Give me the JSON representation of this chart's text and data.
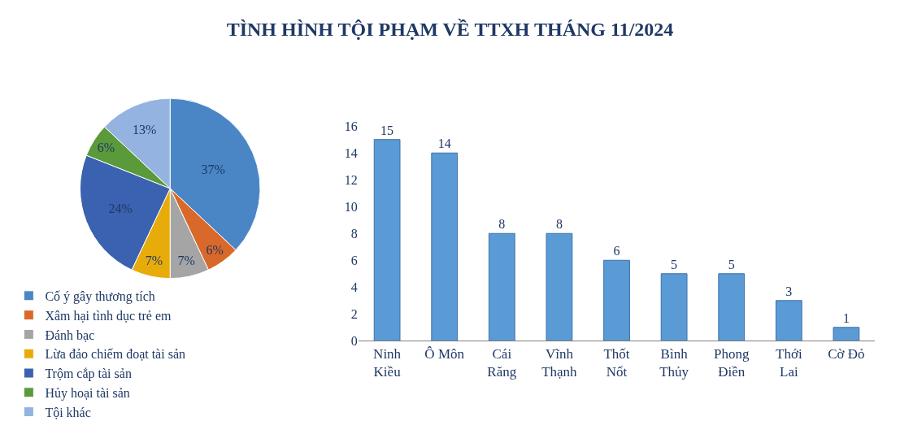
{
  "chart_data": [
    {
      "type": "pie",
      "title": "TÌNH HÌNH TỘI PHẠM VỀ TTXH THÁNG 11/2024",
      "categories": [
        "Cố ý gây thương tích",
        "Xâm hại tình dục trẻ em",
        "Đánh bạc",
        "Lừa đảo chiếm đoạt tài sản",
        "Trộm cắp tài sản",
        "Hủy hoại tài sản",
        "Tội khác"
      ],
      "values": [
        37,
        6,
        7,
        7,
        24,
        6,
        13
      ],
      "value_labels": [
        "37%",
        "6%",
        "7%",
        "7%",
        "24%",
        "6%",
        "13%"
      ],
      "colors": [
        "#4a86c5",
        "#d9692a",
        "#a5a5a5",
        "#e8ac0a",
        "#3a62b0",
        "#5a9a3a",
        "#95b3e0"
      ],
      "legend": "bottom"
    },
    {
      "type": "bar",
      "categories": [
        "Ninh\nKiều",
        "Ô Môn",
        "Cái\nRăng",
        "Vĩnh\nThạnh",
        "Thốt\nNốt",
        "Bình\nThủy",
        "Phong\nĐiền",
        "Thới\nLai",
        "Cờ Đỏ"
      ],
      "values": [
        15,
        14,
        8,
        8,
        6,
        5,
        5,
        3,
        1
      ],
      "color": "#5b9bd5",
      "ylim": [
        0,
        16
      ],
      "yticks": [
        0,
        2,
        4,
        6,
        8,
        10,
        12,
        14,
        16
      ],
      "data_labels": true
    }
  ]
}
